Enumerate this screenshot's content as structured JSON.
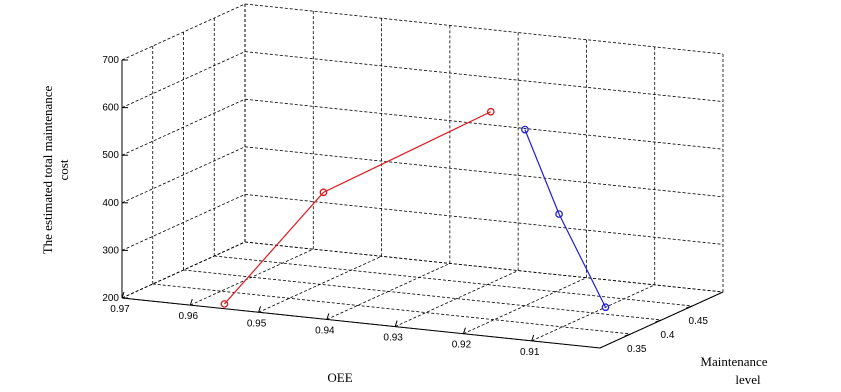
{
  "chart_data": {
    "type": "line3d",
    "title": "",
    "zlabel": "The estimated total maintenance cost",
    "xlabel": "OEE",
    "ylabel": "Maintenance level",
    "x_ticks": [
      "0.97",
      "0.96",
      "0.95",
      "0.94",
      "0.93",
      "0.92",
      "0.91"
    ],
    "y_ticks": [
      "0.35",
      "0.4",
      "0.45"
    ],
    "z_ticks": [
      "200",
      "300",
      "400",
      "500",
      "600",
      "700"
    ],
    "xlim": [
      0.9,
      0.97
    ],
    "ylim": [
      0.3,
      0.5
    ],
    "zlim": [
      200,
      700
    ],
    "grid": true,
    "series": [
      {
        "color": "#e0191b",
        "marker": "circle",
        "points": [
          {
            "oee": 0.925,
            "level": 0.4,
            "cost": 600
          },
          {
            "oee": 0.945,
            "level": 0.35,
            "cost": 430
          },
          {
            "oee": 0.955,
            "level": 0.3,
            "cost": 210
          }
        ]
      },
      {
        "color": "#1f1fd6",
        "marker": "circle",
        "points": [
          {
            "oee": 0.92,
            "level": 0.4,
            "cost": 570
          },
          {
            "oee": 0.915,
            "level": 0.4,
            "cost": 400
          },
          {
            "oee": 0.91,
            "level": 0.42,
            "cost": 200
          }
        ]
      }
    ]
  }
}
